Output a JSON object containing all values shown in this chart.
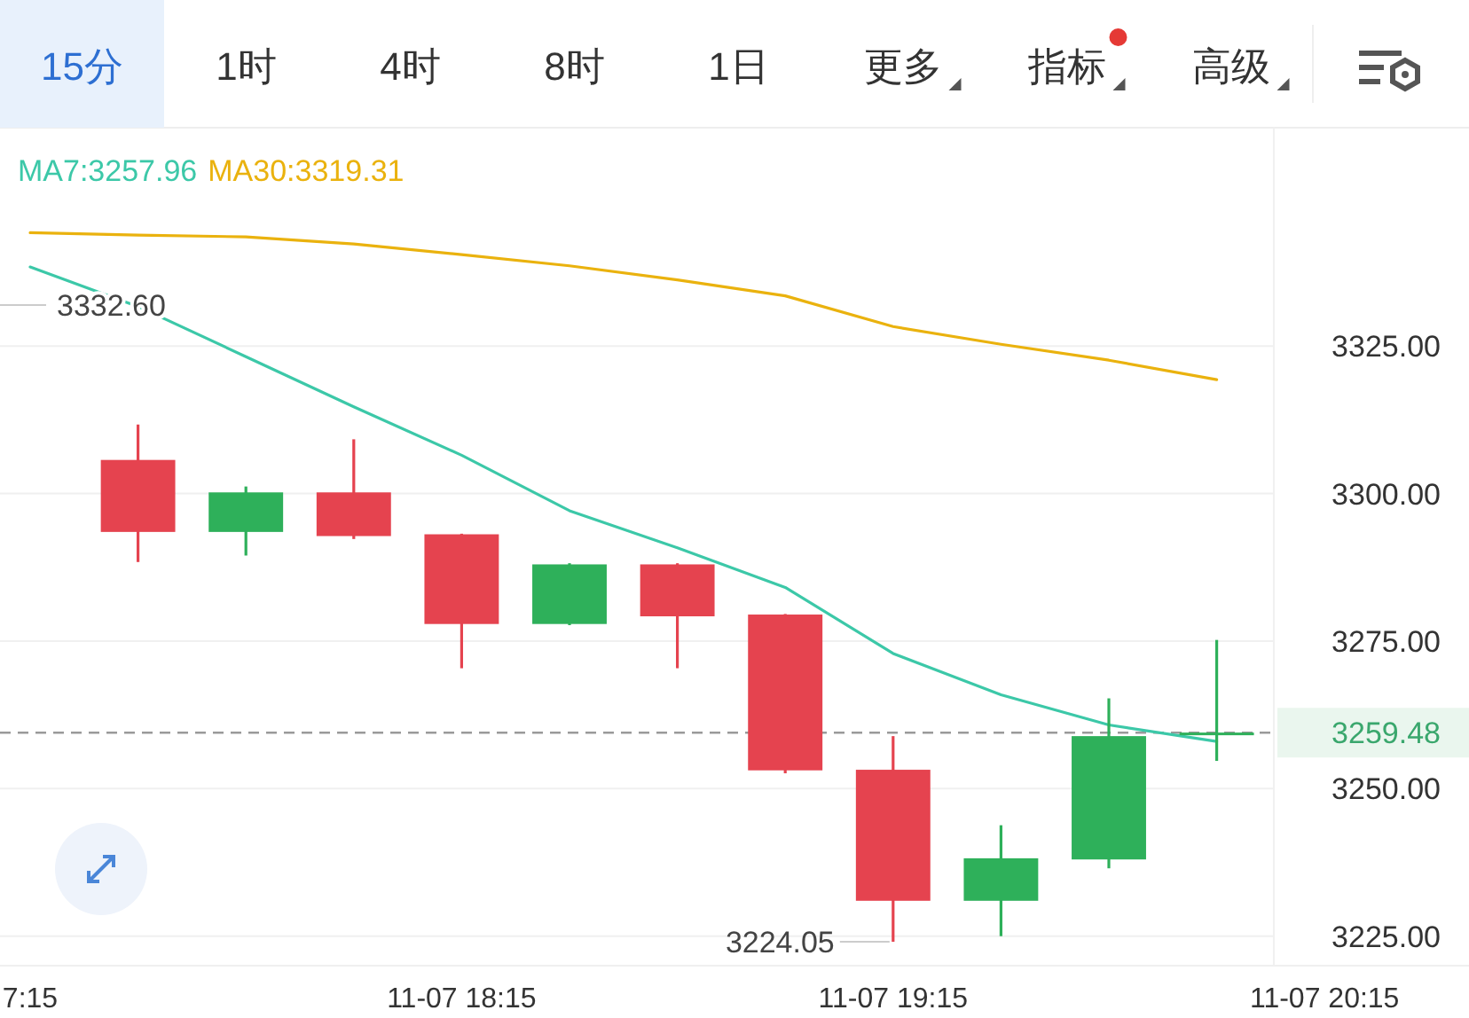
{
  "chart_data": {
    "type": "candlestick",
    "annotations": [
      "15分",
      "1时",
      "4时",
      "8时",
      "1日",
      "更多",
      "指标",
      "高级",
      "3332.60",
      {
        "text": "3224.05",
        "x": "11-07 19:15",
        "y": 3224.05
      }
    ],
    "categories": [
      "7:15",
      null,
      null,
      null,
      "11-07 18:15",
      null,
      null,
      null,
      "11-07 19:15",
      null,
      null,
      null,
      "11-07 20:15"
    ],
    "ohlc": [
      null,
      [
        3305.7,
        3311.7,
        3288.4,
        3293.5
      ],
      [
        3293.5,
        3301.2,
        3289.5,
        3300.2
      ],
      [
        3300.2,
        3309.2,
        3292.3,
        3292.8
      ],
      [
        3293.1,
        3293.2,
        3270.4,
        3277.9
      ],
      [
        3277.9,
        3288.2,
        3277.7,
        3288.0
      ],
      [
        3288.0,
        3288.2,
        3270.4,
        3279.2
      ],
      [
        3279.5,
        3279.6,
        3252.6,
        3253.1
      ],
      [
        3253.2,
        3258.9,
        3224.05,
        3231.0
      ],
      [
        3231.0,
        3243.8,
        3225.0,
        3238.2
      ],
      [
        3238.0,
        3265.3,
        3236.5,
        3258.9
      ],
      [
        3259.2,
        3275.2,
        3254.7,
        3259.5
      ],
      null
    ],
    "colors": [
      null,
      "#e5434f",
      "#2eb05a",
      "#e5434f",
      "#e5434f",
      "#2eb05a",
      "#e5434f",
      "#e5434f",
      "#e5434f",
      "#2eb05a",
      "#2eb05a",
      "#2eb05a",
      null
    ],
    "series": [
      {
        "name": "MA7:3257.96",
        "type": "line",
        "color": "#3cc8a8",
        "values": [
          3338.4,
          3331.7,
          3323.2,
          3314.7,
          3306.5,
          3297.1,
          3290.8,
          3284.1,
          3272.9,
          3265.9,
          3260.8,
          3258.0,
          null
        ]
      },
      {
        "name": "MA30:3319.31",
        "type": "line",
        "color": "#eab20e",
        "values": [
          3344.2,
          3343.8,
          3343.5,
          3342.3,
          3340.5,
          3338.6,
          3336.2,
          3333.5,
          3328.3,
          3325.3,
          3322.6,
          3319.3,
          null
        ]
      }
    ],
    "ylim": [
      3220,
      3362
    ],
    "yticks": [
      {
        "value": 3225,
        "label": "3225.00"
      },
      {
        "value": 3250,
        "label": "3250.00"
      },
      {
        "value": 3275,
        "label": "3275.00"
      },
      {
        "value": 3300,
        "label": "3300.00"
      },
      {
        "value": 3325,
        "label": "3325.00"
      }
    ],
    "ref_lines": [
      {
        "axis": "y",
        "value": 3259.48,
        "label": "3259.48",
        "color": "#9a9a9a",
        "line_style": "dashed"
      }
    ],
    "grid": "y",
    "legend": "top left"
  }
}
